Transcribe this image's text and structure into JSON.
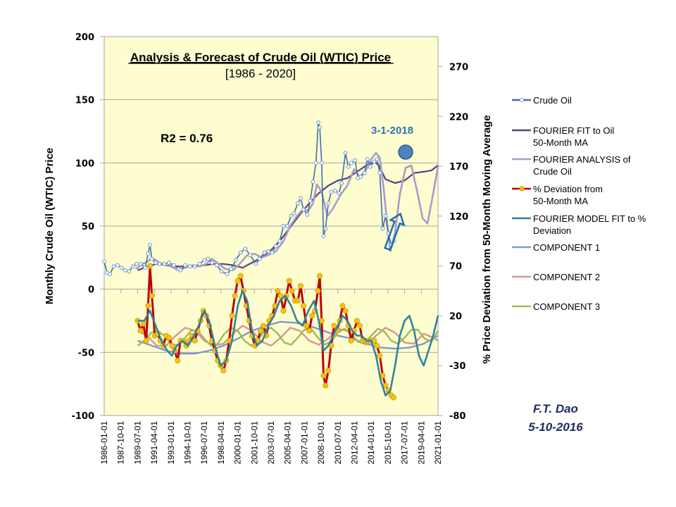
{
  "chart_data": {
    "type": "line",
    "title": "Analysis & Forecast of Crude Oil (WTIC) Price",
    "subtitle": "[1986 - 2020]",
    "xlabel": "",
    "ylabel": "Monthly Crude Oil (WTIC) Price",
    "y2label": "% Price Deviation from 50-Month Moving Average",
    "xlim": [
      1986.0,
      2021.0
    ],
    "ylim": [
      -100,
      200
    ],
    "y2lim": [
      -80,
      300
    ],
    "grid": "horizontal",
    "legend_position": "right",
    "yticks": [
      200,
      150,
      100,
      50,
      0,
      -50,
      -100
    ],
    "ytick_labels": [
      "200",
      "150",
      "100",
      "50",
      "0",
      "-50",
      "-100"
    ],
    "y2ticks": [
      270,
      220,
      170,
      120,
      70,
      20,
      -30,
      -80
    ],
    "y2tick_labels": [
      "270",
      "220",
      "170",
      "120",
      "70",
      "20",
      "-30",
      "-80"
    ],
    "xtick_labels": [
      "1986-01-01",
      "1987-10-01",
      "1989-07-01",
      "1991-04-01",
      "1993-01-01",
      "1994-10-01",
      "1996-07-01",
      "1998-04-01",
      "2000-01-01",
      "2001-10-01",
      "2003-07-01",
      "2005-04-01",
      "2007-01-01",
      "2008-10-01",
      "2010-07-01",
      "2012-04-01",
      "2014-01-01",
      "2015-10-01",
      "2017-07-01",
      "2019-04-01",
      "2021-01-01"
    ],
    "annotations": {
      "r2": "R2 = 0.76",
      "forecast_date": "3-1-2018",
      "author": "F.T. Dao",
      "date": "5-10-2016"
    },
    "series": [
      {
        "name": "Crude Oil",
        "axis": "left",
        "color": "#3d6fa8",
        "marker": "open-circle",
        "x": [
          1986.0,
          1986.3,
          1986.6,
          1987.0,
          1987.4,
          1987.8,
          1988.2,
          1988.6,
          1989.0,
          1989.4,
          1989.8,
          1990.3,
          1990.6,
          1990.8,
          1991.0,
          1991.4,
          1991.8,
          1992.3,
          1992.8,
          1993.3,
          1993.8,
          1994.0,
          1994.5,
          1995.0,
          1995.5,
          1996.0,
          1996.5,
          1996.9,
          1997.3,
          1997.8,
          1998.3,
          1998.9,
          1999.3,
          1999.8,
          2000.3,
          2000.8,
          2001.3,
          2001.9,
          2002.3,
          2002.8,
          2003.2,
          2003.6,
          2004.0,
          2004.4,
          2004.8,
          2005.2,
          2005.6,
          2005.9,
          2006.3,
          2006.6,
          2006.9,
          2007.3,
          2007.6,
          2007.9,
          2008.2,
          2008.45,
          2008.6,
          2008.8,
          2009.0,
          2009.2,
          2009.5,
          2009.8,
          2010.2,
          2010.6,
          2010.9,
          2011.3,
          2011.6,
          2011.9,
          2012.3,
          2012.6,
          2012.9,
          2013.3,
          2013.6,
          2013.9,
          2014.3,
          2014.6,
          2014.9,
          2015.2,
          2015.5,
          2015.8,
          2016.1,
          2016.35
        ],
        "y": [
          22,
          13,
          12,
          18,
          19,
          17,
          15,
          14,
          18,
          20,
          20,
          17,
          28,
          35,
          24,
          21,
          20,
          20,
          21,
          19,
          16,
          15,
          19,
          18,
          18,
          20,
          23,
          24,
          21,
          19,
          14,
          12,
          16,
          23,
          29,
          32,
          27,
          20,
          24,
          29,
          30,
          29,
          34,
          38,
          50,
          50,
          58,
          60,
          68,
          72,
          63,
          59,
          70,
          85,
          100,
          132,
          128,
          100,
          42,
          48,
          68,
          77,
          78,
          76,
          84,
          108,
          97,
          100,
          102,
          88,
          89,
          92,
          103,
          97,
          101,
          103,
          92,
          48,
          58,
          44,
          35,
          38
        ]
      },
      {
        "name": "FOURIER FIT to Oil 50-Month MA",
        "axis": "left",
        "color": "#5b3f86",
        "marker": "none",
        "x": [
          1989.5,
          1990.5,
          1991.5,
          1992.5,
          1993.5,
          1994.5,
          1995.5,
          1996.5,
          1997.5,
          1998.5,
          1999.5,
          2000.5,
          2001.5,
          2002.5,
          2003.5,
          2004.5,
          2005.5,
          2006.5,
          2007.5,
          2008.5,
          2009.5,
          2010.5,
          2011.5,
          2012.5,
          2013.5,
          2014.3,
          2014.8,
          2015.5,
          2016.5,
          2017.5,
          2018.5,
          2019.5,
          2020.3,
          2021.0
        ],
        "y": [
          15,
          18,
          20,
          19,
          18,
          18,
          18,
          19,
          20,
          20,
          19,
          17,
          21,
          25,
          31,
          39,
          49,
          59,
          68,
          76,
          82,
          86,
          88,
          93,
          98,
          101,
          98,
          87,
          84,
          86,
          92,
          93,
          94,
          98
        ]
      },
      {
        "name": "FOURIER ANALYSIS of Crude Oil",
        "axis": "left",
        "color": "#a99bc8",
        "marker": "none",
        "x": [
          1989.3,
          1990.0,
          1990.6,
          1991.0,
          1991.6,
          1992.3,
          1993.0,
          1993.8,
          1994.5,
          1995.3,
          1996.0,
          1996.7,
          1997.3,
          1998.0,
          1998.7,
          1999.5,
          2000.2,
          2001.0,
          2001.8,
          2002.5,
          2003.2,
          2004.0,
          2004.8,
          2005.5,
          2006.2,
          2006.8,
          2007.4,
          2007.9,
          2008.3,
          2008.8,
          2009.4,
          2010.0,
          2010.8,
          2011.5,
          2012.2,
          2012.8,
          2013.5,
          2014.0,
          2014.5,
          2014.9,
          2015.3,
          2015.7,
          2016.0,
          2016.5,
          2017.0,
          2017.6,
          2018.2,
          2018.8,
          2019.4,
          2019.9,
          2020.4,
          2021.0
        ],
        "y": [
          16,
          20,
          22,
          25,
          22,
          19,
          18,
          15,
          17,
          19,
          18,
          20,
          24,
          20,
          16,
          15,
          20,
          27,
          28,
          25,
          27,
          30,
          38,
          50,
          58,
          63,
          62,
          68,
          83,
          77,
          58,
          64,
          75,
          82,
          95,
          89,
          95,
          103,
          108,
          104,
          80,
          50,
          30,
          45,
          75,
          96,
          98,
          78,
          56,
          52,
          72,
          97
        ]
      },
      {
        "name": "% Deviation from 50-Month MA",
        "axis": "right",
        "color": "#c00000",
        "marker": "filled-circle-gold",
        "x": [
          1989.5,
          1989.8,
          1990.1,
          1990.4,
          1990.6,
          1990.8,
          1991.0,
          1991.3,
          1991.6,
          1991.9,
          1992.2,
          1992.5,
          1992.8,
          1993.1,
          1993.4,
          1993.7,
          1994.0,
          1994.3,
          1994.6,
          1994.9,
          1995.2,
          1995.5,
          1995.8,
          1996.1,
          1996.4,
          1996.7,
          1997.0,
          1997.3,
          1997.6,
          1997.9,
          1998.2,
          1998.5,
          1998.8,
          1999.1,
          1999.4,
          1999.7,
          2000.0,
          2000.3,
          2000.6,
          2000.9,
          2001.2,
          2001.5,
          2001.8,
          2002.1,
          2002.4,
          2002.7,
          2003.0,
          2003.3,
          2003.6,
          2003.9,
          2004.2,
          2004.5,
          2004.8,
          2005.1,
          2005.4,
          2005.7,
          2006.0,
          2006.3,
          2006.6,
          2006.9,
          2007.2,
          2007.5,
          2007.8,
          2008.1,
          2008.4,
          2008.6,
          2008.8,
          2009.0,
          2009.2,
          2009.5,
          2009.8,
          2010.1,
          2010.4,
          2010.7,
          2011.0,
          2011.3,
          2011.6,
          2011.9,
          2012.2,
          2012.5,
          2012.8,
          2013.1,
          2013.4,
          2013.7,
          2014.0,
          2014.3,
          2014.6,
          2014.9,
          2015.2,
          2015.5,
          2015.8,
          2016.1,
          2016.35
        ],
        "y": [
          15,
          5,
          12,
          -5,
          30,
          70,
          40,
          0,
          2,
          -5,
          -10,
          0,
          -2,
          -10,
          -15,
          -25,
          -5,
          -5,
          -10,
          -5,
          0,
          -5,
          5,
          15,
          25,
          20,
          10,
          -5,
          -15,
          -25,
          -30,
          -35,
          -25,
          -5,
          20,
          40,
          55,
          60,
          45,
          30,
          15,
          0,
          -10,
          -5,
          5,
          10,
          0,
          15,
          20,
          30,
          45,
          40,
          25,
          40,
          55,
          45,
          35,
          35,
          50,
          30,
          10,
          5,
          20,
          25,
          45,
          60,
          15,
          -40,
          -50,
          -35,
          -10,
          10,
          5,
          15,
          30,
          25,
          10,
          -5,
          5,
          15,
          10,
          -5,
          -5,
          -5,
          -5,
          -5,
          -10,
          -20,
          -40,
          -50,
          -55,
          -60,
          -62
        ]
      },
      {
        "name": "FOURIER MODEL FIT to % Deviation",
        "axis": "right",
        "color": "#31849b",
        "marker": "none",
        "x": [
          1989.5,
          1990.2,
          1990.8,
          1991.4,
          1992.0,
          1992.6,
          1993.1,
          1993.6,
          1994.2,
          1994.8,
          1995.4,
          1995.9,
          1996.5,
          1997.0,
          1997.6,
          1998.2,
          1998.8,
          1999.4,
          2000.0,
          2000.5,
          2001.0,
          2001.5,
          2002.0,
          2002.6,
          2003.2,
          2003.8,
          2004.4,
          2005.0,
          2005.6,
          2006.2,
          2006.8,
          2007.4,
          2008.0,
          2008.5,
          2009.0,
          2009.5,
          2010.0,
          2010.5,
          2011.0,
          2011.5,
          2012.0,
          2012.5,
          2013.0,
          2013.5,
          2014.0,
          2014.5,
          2015.0,
          2015.5,
          2016.0,
          2016.5,
          2017.0,
          2017.5,
          2018.0,
          2018.5,
          2019.0,
          2019.5,
          2020.0,
          2020.5,
          2021.0
        ],
        "y": [
          15,
          15,
          25,
          10,
          -5,
          -15,
          -20,
          -10,
          -5,
          -10,
          0,
          10,
          25,
          15,
          -10,
          -30,
          -25,
          -5,
          30,
          45,
          35,
          5,
          -10,
          -5,
          10,
          20,
          35,
          40,
          30,
          15,
          10,
          25,
          35,
          15,
          -15,
          -10,
          0,
          10,
          20,
          15,
          5,
          0,
          0,
          -5,
          -5,
          -20,
          -45,
          -60,
          -55,
          -30,
          0,
          15,
          20,
          5,
          -20,
          -30,
          -15,
          0,
          20
        ]
      },
      {
        "name": "COMPONENT 1",
        "axis": "right",
        "color": "#8497cc",
        "marker": "none",
        "x": [
          1989.5,
          1991.0,
          1992.5,
          1994.0,
          1995.5,
          1997.0,
          1998.5,
          2000.0,
          2001.5,
          2003.0,
          2004.5,
          2006.0,
          2007.5,
          2009.0,
          2010.5,
          2012.0,
          2013.5,
          2015.0,
          2016.5,
          2018.0,
          2019.5,
          2021.0
        ],
        "y": [
          -5,
          -10,
          -15,
          -18,
          -18,
          -15,
          -10,
          -3,
          5,
          10,
          14,
          13,
          10,
          5,
          0,
          -3,
          -8,
          -12,
          -13,
          -12,
          -8,
          0
        ]
      },
      {
        "name": "COMPONENT 2",
        "axis": "right",
        "color": "#d99594",
        "marker": "none",
        "x": [
          1989.5,
          1990.5,
          1991.5,
          1992.5,
          1993.5,
          1994.5,
          1995.5,
          1996.5,
          1997.5,
          1998.5,
          1999.5,
          2000.5,
          2001.5,
          2002.5,
          2003.5,
          2004.5,
          2005.5,
          2006.5,
          2007.5,
          2008.5,
          2009.5,
          2010.5,
          2011.5,
          2012.5,
          2013.5,
          2014.5,
          2015.5,
          2016.5,
          2017.5,
          2018.5,
          2019.5,
          2020.5,
          2021.0
        ],
        "y": [
          5,
          0,
          -10,
          -10,
          0,
          8,
          5,
          -5,
          -10,
          -8,
          2,
          10,
          5,
          -6,
          -10,
          -2,
          8,
          5,
          -5,
          -9,
          -3,
          7,
          5,
          -5,
          -9,
          0,
          8,
          3,
          -7,
          -8,
          2,
          -2,
          -5
        ]
      },
      {
        "name": "COMPONENT 3",
        "axis": "right",
        "color": "#9bbb59",
        "marker": "none",
        "x": [
          1989.5,
          1990.2,
          1990.9,
          1991.6,
          1992.3,
          1993.0,
          1993.7,
          1994.4,
          1995.1,
          1995.8,
          1996.5,
          1997.2,
          1997.9,
          1998.6,
          1999.3,
          2000.0,
          2000.7,
          2001.4,
          2002.1,
          2002.8,
          2003.5,
          2004.2,
          2004.9,
          2005.6,
          2006.3,
          2007.0,
          2007.7,
          2008.4,
          2009.1,
          2009.8,
          2010.5,
          2011.2,
          2011.9,
          2012.6,
          2013.3,
          2014.0,
          2014.7,
          2015.4,
          2016.1,
          2016.8,
          2017.5,
          2018.2,
          2018.9,
          2019.6,
          2020.3,
          2021.0
        ],
        "y": [
          -10,
          -5,
          3,
          5,
          0,
          -8,
          -10,
          -3,
          5,
          5,
          -3,
          -10,
          -8,
          2,
          8,
          5,
          -5,
          -10,
          -5,
          5,
          8,
          2,
          -7,
          -9,
          -2,
          6,
          7,
          -2,
          -9,
          -6,
          3,
          7,
          2,
          -6,
          -8,
          0,
          7,
          4,
          -5,
          -8,
          -2,
          6,
          6,
          -3,
          -6,
          5
        ]
      }
    ]
  },
  "legend": {
    "items": [
      {
        "label": "Crude Oil"
      },
      {
        "label": "FOURIER FIT to Oil 50-Month MA"
      },
      {
        "label": "FOURIER ANALYSIS of Crude Oil"
      },
      {
        "label": "% Deviation from 50-Month MA"
      },
      {
        "label": "FOURIER MODEL FIT to % Deviation"
      },
      {
        "label": "COMPONENT 1"
      },
      {
        "label": "COMPONENT 2"
      },
      {
        "label": "COMPONENT 3"
      }
    ]
  },
  "colors": {
    "plot_background": "#fefdcf",
    "grid": "#a6a6a6",
    "annotation_blue": "#2e75b6",
    "author_navy": "#1f2a5c"
  }
}
